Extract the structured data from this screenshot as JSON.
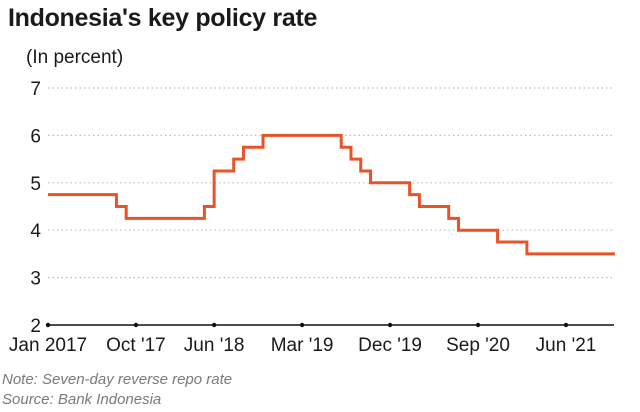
{
  "title": "Indonesia's key policy rate",
  "subtitle": "(In percent)",
  "note": "Note: Seven-day reverse repo rate",
  "source": "Source: Bank Indonesia",
  "colors": {
    "line": "#e8542a",
    "grid": "#bbbbbb",
    "axis": "#111111",
    "text": "#1a1a1a",
    "note": "#7a7a7a"
  },
  "chart_data": {
    "type": "line",
    "step": true,
    "ylim": [
      2,
      7
    ],
    "yticks": [
      2,
      3,
      4,
      5,
      6,
      7
    ],
    "xlim": [
      "2017-01",
      "2021-11"
    ],
    "xticks": [
      {
        "label": "Jan 2017",
        "date": "2017-01"
      },
      {
        "label": "Oct '17",
        "date": "2017-10"
      },
      {
        "label": "Jun '18",
        "date": "2018-06"
      },
      {
        "label": "Mar '19",
        "date": "2019-03"
      },
      {
        "label": "Dec '19",
        "date": "2019-12"
      },
      {
        "label": "Sep '20",
        "date": "2020-09"
      },
      {
        "label": "Jun '21",
        "date": "2021-06"
      }
    ],
    "grid": "horizontal-dotted",
    "series": [
      {
        "points": [
          {
            "x": "2017-01",
            "y": 4.75
          },
          {
            "x": "2017-08",
            "y": 4.5
          },
          {
            "x": "2017-09",
            "y": 4.25
          },
          {
            "x": "2018-05",
            "y": 4.5
          },
          {
            "x": "2018-06",
            "y": 4.75
          },
          {
            "x": "2018-06",
            "y": 5.25
          },
          {
            "x": "2018-08",
            "y": 5.5
          },
          {
            "x": "2018-09",
            "y": 5.75
          },
          {
            "x": "2018-11",
            "y": 6
          },
          {
            "x": "2019-07",
            "y": 5.75
          },
          {
            "x": "2019-08",
            "y": 5.5
          },
          {
            "x": "2019-09",
            "y": 5.25
          },
          {
            "x": "2019-10",
            "y": 5
          },
          {
            "x": "2020-02",
            "y": 4.75
          },
          {
            "x": "2020-03",
            "y": 4.5
          },
          {
            "x": "2020-06",
            "y": 4.25
          },
          {
            "x": "2020-07",
            "y": 4
          },
          {
            "x": "2020-11",
            "y": 3.75
          },
          {
            "x": "2021-02",
            "y": 3.5
          },
          {
            "x": "2021-11",
            "y": 3.5
          }
        ]
      }
    ]
  }
}
